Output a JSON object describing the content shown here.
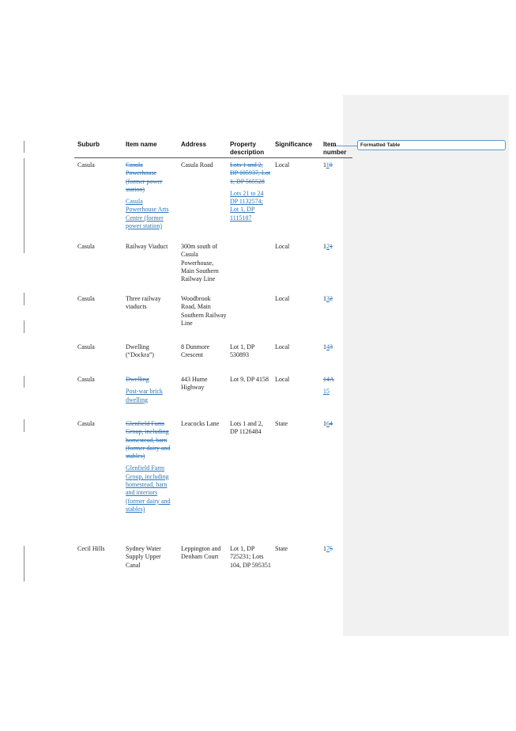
{
  "comment": {
    "label": "Formatted Table"
  },
  "headers": {
    "suburb": "Suburb",
    "item_name": "Item name",
    "address": "Address",
    "property_line1": "Property",
    "property_line2": "description",
    "significance": "Significance",
    "item_number_line1": "Item",
    "item_number_line2": "number"
  },
  "rows": [
    {
      "suburb": "Casula",
      "item_name_del": "Casula Powerhouse (former power station)",
      "item_name_ins": "Casula Powerhouse Arts Centre (former power station)",
      "address": "Casula Road",
      "property_del": "Lots 1 and 2, DP 105937, Lot 1, DP 565528",
      "property_ins": "Lots 21 to 24 DP 1132574; Lot 1, DP 1115187",
      "significance": "Local",
      "item_number_plain": "1",
      "item_number_ins": "1",
      "item_number_del": "0"
    },
    {
      "suburb": "Casula",
      "item_name": "Railway Viaduct",
      "address": "300m south of Casula Powerhouse, Main Southern Railway Line",
      "property": "",
      "significance": "Local",
      "item_number_plain": "1",
      "item_number_ins": "2",
      "item_number_del": "1"
    },
    {
      "suburb": "Casula",
      "item_name": "Three railway viaducts",
      "address": "Woodbrook Road, Main Southern Railway Line",
      "property": "",
      "significance": "Local",
      "item_number_plain": "1",
      "item_number_ins": "3",
      "item_number_del": "2"
    },
    {
      "suburb": "Casula",
      "item_name": "Dwelling (“Dockra”)",
      "address": "8 Dunmore Crescent",
      "property": "Lot 1, DP 530893",
      "significance": "Local",
      "item_number_plain": "1",
      "item_number_ins": "4",
      "item_number_del": "3"
    },
    {
      "suburb": "Casula",
      "item_name_del": "Dwelling",
      "item_name_ins": "Post-war brick dwelling",
      "address": "443 Hume Highway",
      "property": "Lot 9, DP 4158",
      "significance": "Local",
      "item_number_del": "14A",
      "item_number_ins": "15"
    },
    {
      "suburb": "Casula",
      "item_name_del": "Glenfield Farm Group, including homestead, barn (former dairy and stables)",
      "item_name_ins": "Glenfield Farm Group, including homestead, barn and interiors (former dairy and stables)",
      "address": "Leacocks Lane",
      "property": "Lots 1 and 2, DP 1126484",
      "significance": "State",
      "item_number_plain": "1",
      "item_number_ins": "6",
      "item_number_del": "4"
    },
    {
      "suburb": "Cecil Hills",
      "item_name": "Sydney Water Supply Upper Canal",
      "address": "Leppington and Denham Court",
      "property": "Lot 1, DP 725231; Lots 104, DP 595351",
      "significance": "State",
      "item_number_plain": "1",
      "item_number_ins": "7",
      "item_number_del": "5"
    }
  ]
}
